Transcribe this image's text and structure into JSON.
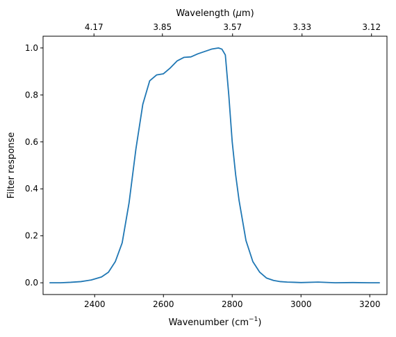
{
  "chart_data": {
    "type": "line",
    "xlabel": "Wavenumber (cm",
    "xlabel_sup": "−1",
    "xlabel_tail": ")",
    "ylabel": "Filter response",
    "x2label": "Wavelength (",
    "x2label_mu": "μ",
    "x2label_tail": "m)",
    "xlim": [
      2250,
      3250
    ],
    "ylim": [
      -0.05,
      1.05
    ],
    "xticks": [
      {
        "v": 2400,
        "label": "2400"
      },
      {
        "v": 2600,
        "label": "2600"
      },
      {
        "v": 2800,
        "label": "2800"
      },
      {
        "v": 3000,
        "label": "3000"
      },
      {
        "v": 3200,
        "label": "3200"
      }
    ],
    "yticks": [
      {
        "v": 0.0,
        "label": "0.0"
      },
      {
        "v": 0.2,
        "label": "0.2"
      },
      {
        "v": 0.4,
        "label": "0.4"
      },
      {
        "v": 0.6,
        "label": "0.6"
      },
      {
        "v": 0.8,
        "label": "0.8"
      },
      {
        "v": 1.0,
        "label": "1.0"
      }
    ],
    "x2ticks": [
      {
        "v": 2398,
        "label": "4.17"
      },
      {
        "v": 2597,
        "label": "3.85"
      },
      {
        "v": 2801,
        "label": "3.57"
      },
      {
        "v": 3003,
        "label": "3.33"
      },
      {
        "v": 3205,
        "label": "3.12"
      }
    ],
    "grid": false,
    "series": [
      {
        "color": "#1f77b4",
        "x": [
          2270,
          2300,
          2330,
          2360,
          2390,
          2420,
          2440,
          2460,
          2480,
          2500,
          2520,
          2540,
          2560,
          2580,
          2600,
          2620,
          2640,
          2660,
          2680,
          2700,
          2720,
          2740,
          2760,
          2770,
          2780,
          2790,
          2800,
          2810,
          2820,
          2840,
          2860,
          2880,
          2900,
          2920,
          2940,
          2960,
          2980,
          3000,
          3050,
          3100,
          3150,
          3200,
          3228
        ],
        "y": [
          0.0,
          0.0,
          0.002,
          0.005,
          0.012,
          0.025,
          0.045,
          0.09,
          0.17,
          0.34,
          0.57,
          0.76,
          0.86,
          0.885,
          0.89,
          0.915,
          0.945,
          0.96,
          0.962,
          0.975,
          0.985,
          0.995,
          1.0,
          0.995,
          0.97,
          0.8,
          0.6,
          0.46,
          0.35,
          0.18,
          0.09,
          0.045,
          0.02,
          0.01,
          0.005,
          0.003,
          0.002,
          0.001,
          0.003,
          0.0,
          0.001,
          0.0,
          0.0
        ]
      }
    ]
  }
}
